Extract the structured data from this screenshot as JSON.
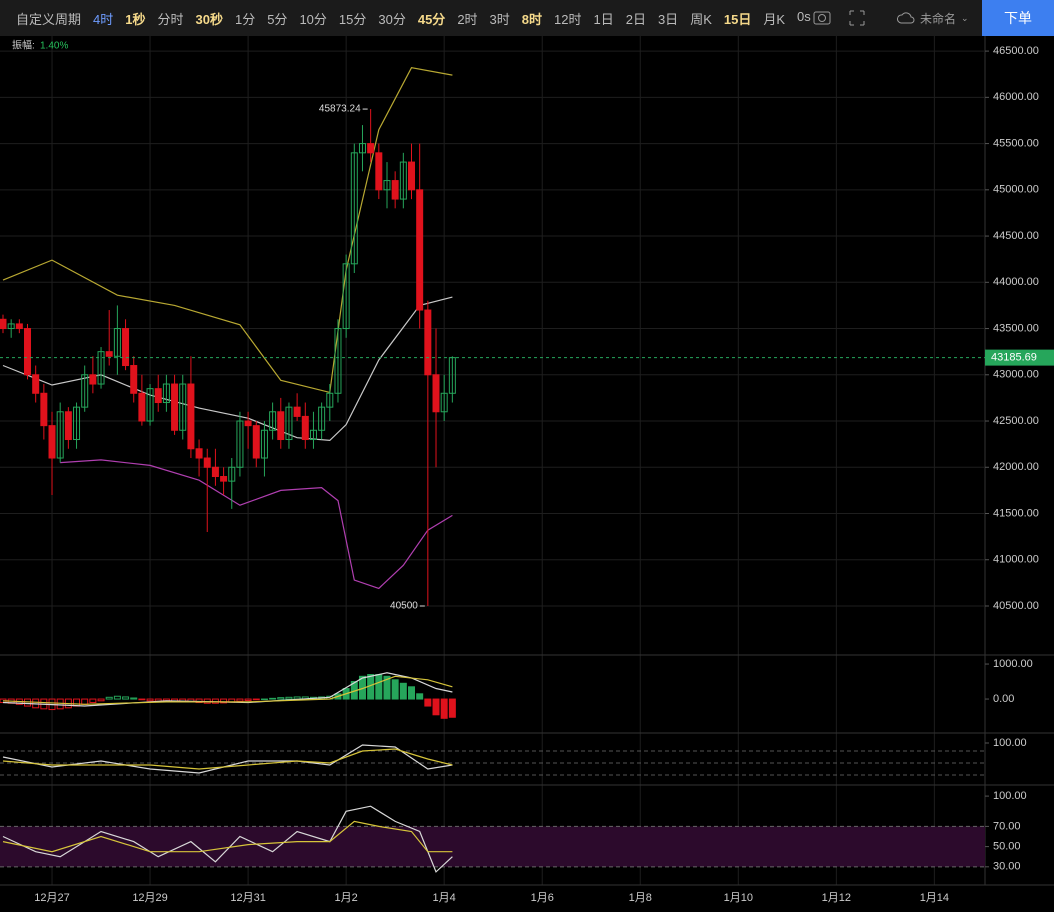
{
  "toolbar": {
    "items": [
      {
        "label": "自定义周期",
        "style": "normal"
      },
      {
        "label": "4时",
        "style": "active"
      },
      {
        "label": "1秒",
        "style": "featured"
      },
      {
        "label": "分时",
        "style": "normal"
      },
      {
        "label": "30秒",
        "style": "featured"
      },
      {
        "label": "1分",
        "style": "normal"
      },
      {
        "label": "5分",
        "style": "normal"
      },
      {
        "label": "10分",
        "style": "normal"
      },
      {
        "label": "15分",
        "style": "normal"
      },
      {
        "label": "30分",
        "style": "normal"
      },
      {
        "label": "45分",
        "style": "featured"
      },
      {
        "label": "2时",
        "style": "normal"
      },
      {
        "label": "3时",
        "style": "normal"
      },
      {
        "label": "8时",
        "style": "featured"
      },
      {
        "label": "12时",
        "style": "normal"
      },
      {
        "label": "1日",
        "style": "normal"
      },
      {
        "label": "2日",
        "style": "normal"
      },
      {
        "label": "3日",
        "style": "normal"
      },
      {
        "label": "周K",
        "style": "normal"
      },
      {
        "label": "15日",
        "style": "featured"
      },
      {
        "label": "月K",
        "style": "normal"
      },
      {
        "label": "0s",
        "style": "normal"
      }
    ],
    "layout_name": "未命名",
    "order_button": "下单"
  },
  "chart_data": {
    "type": "candlestick",
    "amplitude_label": "振幅:",
    "amplitude": "1.40%",
    "up_color": "#26a65b",
    "down_color": "#e0121c",
    "grid": true,
    "ylim": [
      39970,
      46620
    ],
    "yticks": [
      {
        "value": 46500,
        "label": "46500.00"
      },
      {
        "value": 46000,
        "label": "46000.00"
      },
      {
        "value": 45500,
        "label": "45500.00"
      },
      {
        "value": 45000,
        "label": "45000.00"
      },
      {
        "value": 44500,
        "label": "44500.00"
      },
      {
        "value": 44000,
        "label": "44000.00"
      },
      {
        "value": 43500,
        "label": "43500.00"
      },
      {
        "value": 43000,
        "label": "43000.00"
      },
      {
        "value": 42500,
        "label": "42500.00"
      },
      {
        "value": 42000,
        "label": "42000.00"
      },
      {
        "value": 41500,
        "label": "41500.00"
      },
      {
        "value": 41000,
        "label": "41000.00"
      },
      {
        "value": 40500,
        "label": "40500.00"
      }
    ],
    "xticks": [
      {
        "value": 6,
        "label": "12月27"
      },
      {
        "value": 18,
        "label": "12月29"
      },
      {
        "value": 30,
        "label": "12月31"
      },
      {
        "value": 42,
        "label": "1月2"
      },
      {
        "value": 54,
        "label": "1月4"
      },
      {
        "value": 66,
        "label": "1月6"
      },
      {
        "value": 78,
        "label": "1月8"
      },
      {
        "value": 90,
        "label": "1月10"
      },
      {
        "value": 102,
        "label": "1月12"
      },
      {
        "value": 114,
        "label": "1月14"
      }
    ],
    "candles": [
      [
        43600,
        43650,
        43450,
        43500
      ],
      [
        43500,
        43600,
        43400,
        43550
      ],
      [
        43550,
        43600,
        43450,
        43500
      ],
      [
        43500,
        43550,
        42950,
        43000
      ],
      [
        43000,
        43100,
        42700,
        42800
      ],
      [
        42800,
        42900,
        42300,
        42450
      ],
      [
        42450,
        42600,
        41700,
        42100
      ],
      [
        42100,
        42700,
        42050,
        42600
      ],
      [
        42600,
        42650,
        42200,
        42300
      ],
      [
        42300,
        42700,
        42200,
        42650
      ],
      [
        42650,
        43100,
        42600,
        43000
      ],
      [
        43000,
        43200,
        42800,
        42900
      ],
      [
        42900,
        43300,
        42850,
        43250
      ],
      [
        43250,
        43700,
        43100,
        43200
      ],
      [
        43200,
        43750,
        43000,
        43500
      ],
      [
        43500,
        43600,
        43050,
        43100
      ],
      [
        43100,
        43200,
        42700,
        42800
      ],
      [
        42800,
        43000,
        42450,
        42500
      ],
      [
        42500,
        42900,
        42450,
        42850
      ],
      [
        42850,
        43000,
        42600,
        42700
      ],
      [
        42700,
        43000,
        42600,
        42900
      ],
      [
        42900,
        43000,
        42350,
        42400
      ],
      [
        42400,
        43000,
        42300,
        42900
      ],
      [
        42900,
        43200,
        42100,
        42200
      ],
      [
        42200,
        42300,
        41900,
        42100
      ],
      [
        42100,
        42200,
        41300,
        42000
      ],
      [
        42000,
        42200,
        41800,
        41900
      ],
      [
        41900,
        42000,
        41700,
        41850
      ],
      [
        41850,
        42100,
        41550,
        42000
      ],
      [
        42000,
        42600,
        41900,
        42500
      ],
      [
        42500,
        42600,
        42200,
        42450
      ],
      [
        42450,
        42500,
        42000,
        42100
      ],
      [
        42100,
        42500,
        41900,
        42400
      ],
      [
        42400,
        42700,
        42300,
        42600
      ],
      [
        42600,
        42750,
        42200,
        42300
      ],
      [
        42300,
        42700,
        42200,
        42650
      ],
      [
        42650,
        42800,
        42500,
        42550
      ],
      [
        42550,
        42700,
        42200,
        42300
      ],
      [
        42300,
        42600,
        42200,
        42400
      ],
      [
        42400,
        42700,
        42300,
        42650
      ],
      [
        42650,
        42900,
        42500,
        42800
      ],
      [
        42800,
        43600,
        42700,
        43500
      ],
      [
        43500,
        44300,
        43400,
        44200
      ],
      [
        44200,
        45500,
        44100,
        45400
      ],
      [
        45400,
        45700,
        45200,
        45500
      ],
      [
        45500,
        45873.24,
        45300,
        45400
      ],
      [
        45400,
        45500,
        44900,
        45000
      ],
      [
        45000,
        45300,
        44800,
        45100
      ],
      [
        45100,
        45200,
        44800,
        44900
      ],
      [
        44900,
        45400,
        44800,
        45300
      ],
      [
        45300,
        45500,
        44900,
        45000
      ],
      [
        45000,
        45500,
        43500,
        43700
      ],
      [
        43700,
        43800,
        40500,
        43000
      ],
      [
        43000,
        43500,
        42000,
        42600
      ],
      [
        42600,
        43000,
        42500,
        42800
      ],
      [
        42800,
        43200,
        42700,
        43185.69
      ]
    ],
    "bands": [
      {
        "name": "upper",
        "color": "#b8a832",
        "x": [
          0,
          6,
          14,
          21,
          29,
          34,
          40,
          42,
          46,
          50,
          55
        ],
        "values": [
          44024,
          44240,
          43860,
          43750,
          43540,
          42940,
          42810,
          44130,
          45650,
          46320,
          46240
        ]
      },
      {
        "name": "middle",
        "color": "#c8c8c8",
        "x": [
          0,
          6,
          12,
          18,
          24,
          30,
          36,
          40,
          42,
          46,
          51,
          55
        ],
        "values": [
          43100,
          42890,
          43000,
          42780,
          42640,
          42530,
          42320,
          42290,
          42460,
          43160,
          43750,
          43840
        ]
      },
      {
        "name": "lower",
        "color": "#b03fb0",
        "x": [
          7,
          12,
          18,
          24,
          29,
          34,
          39,
          41,
          43,
          46,
          49,
          52,
          55
        ],
        "values": [
          42050,
          42080,
          42020,
          41860,
          41590,
          41750,
          41780,
          41640,
          40780,
          40690,
          40940,
          41320,
          41480
        ]
      }
    ],
    "macd": {
      "ylim": [
        -970,
        1230
      ],
      "yticks": [
        {
          "value": 1000,
          "label": "1000.00"
        },
        {
          "value": 0,
          "label": "0.00"
        }
      ],
      "hist": [
        -100,
        -120,
        -150,
        -200,
        -250,
        -280,
        -300,
        -280,
        -250,
        -200,
        -150,
        -100,
        -50,
        50,
        80,
        60,
        30,
        -20,
        -50,
        -60,
        -50,
        -60,
        -70,
        -80,
        -100,
        -120,
        -120,
        -110,
        -90,
        -60,
        -40,
        -20,
        0,
        20,
        40,
        50,
        60,
        60,
        50,
        60,
        80,
        150,
        300,
        500,
        650,
        700,
        700,
        650,
        550,
        450,
        350,
        150,
        -200,
        -450,
        -550,
        -520
      ],
      "series": [
        {
          "color": "#d8d8d8",
          "x": [
            0,
            10,
            20,
            30,
            40,
            44,
            47,
            50,
            53,
            55
          ],
          "values": [
            -100,
            -200,
            -50,
            -100,
            50,
            600,
            750,
            600,
            300,
            200
          ]
        },
        {
          "color": "#d6c43a",
          "x": [
            0,
            10,
            20,
            30,
            40,
            44,
            48,
            52,
            55
          ],
          "values": [
            -50,
            -150,
            -80,
            -80,
            0,
            300,
            650,
            550,
            350
          ]
        }
      ]
    },
    "kdj": {
      "ylim": [
        -5,
        122.5
      ],
      "yticks": [
        {
          "value": 100,
          "label": "100.00"
        }
      ],
      "levels": [
        80,
        50,
        20
      ],
      "series": [
        {
          "color": "#d8d8d8",
          "x": [
            0,
            6,
            12,
            18,
            24,
            30,
            36,
            40,
            44,
            48,
            52,
            55
          ],
          "values": [
            65,
            40,
            55,
            35,
            25,
            55,
            55,
            45,
            95,
            90,
            35,
            45
          ]
        },
        {
          "color": "#d6c43a",
          "x": [
            0,
            6,
            12,
            18,
            24,
            30,
            36,
            40,
            44,
            48,
            52,
            55
          ],
          "values": [
            55,
            45,
            45,
            45,
            35,
            45,
            55,
            50,
            80,
            85,
            60,
            45
          ]
        }
      ]
    },
    "rsi": {
      "ylim": [
        12,
        110
      ],
      "yticks": [
        {
          "value": 100,
          "label": "100.00"
        },
        {
          "value": 70,
          "label": "70.00"
        },
        {
          "value": 50,
          "label": "50.00"
        },
        {
          "value": 30,
          "label": "30.00"
        }
      ],
      "band": [
        30,
        70
      ],
      "series": [
        {
          "color": "#d8d8d8",
          "x": [
            0,
            4,
            7,
            12,
            16,
            19,
            23,
            26,
            29,
            33,
            36,
            40,
            42,
            45,
            48,
            51,
            53,
            55
          ],
          "values": [
            60,
            45,
            40,
            65,
            55,
            40,
            55,
            35,
            60,
            45,
            65,
            55,
            85,
            90,
            75,
            65,
            25,
            40
          ]
        },
        {
          "color": "#d6c43a",
          "x": [
            0,
            6,
            12,
            18,
            24,
            30,
            36,
            40,
            43,
            46,
            50,
            52,
            55
          ],
          "values": [
            55,
            45,
            60,
            45,
            45,
            52,
            55,
            55,
            75,
            70,
            65,
            45,
            45
          ]
        }
      ]
    }
  }
}
